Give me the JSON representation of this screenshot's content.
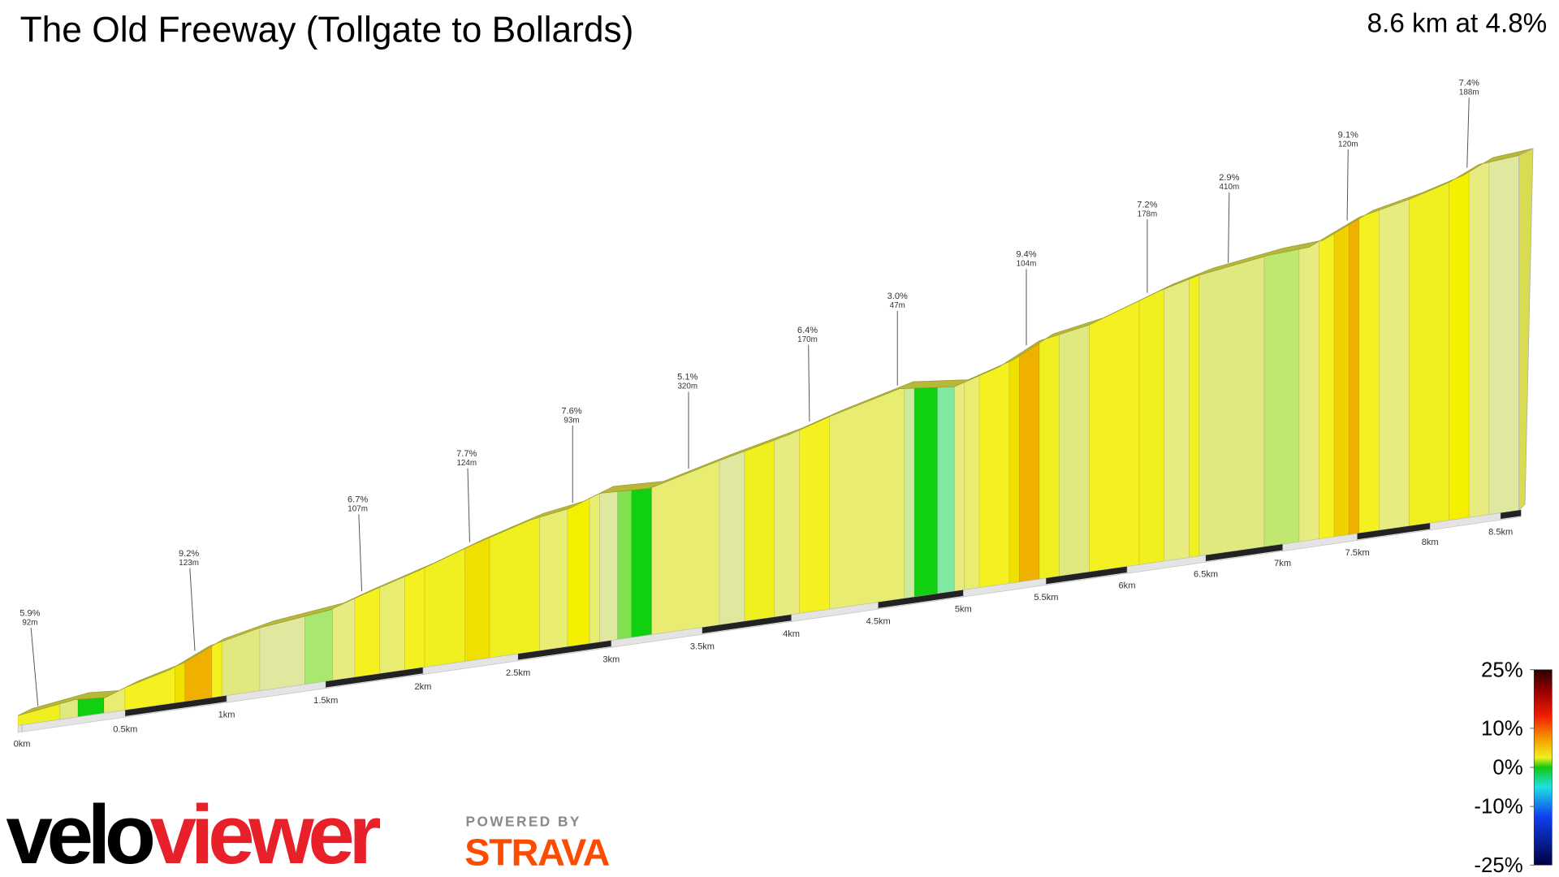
{
  "chart_data": {
    "type": "elevation-profile",
    "title": "The Old Freeway (Tollgate to Bollards)",
    "subtitle": "8.6 km at 4.8%",
    "xticks": [
      {
        "value": 0,
        "label": "0km"
      },
      {
        "value": 0.5,
        "label": "0.5km"
      },
      {
        "value": 1,
        "label": "1km"
      },
      {
        "value": 1.5,
        "label": "1.5km"
      },
      {
        "value": 2,
        "label": "2km"
      },
      {
        "value": 2.5,
        "label": "2.5km"
      },
      {
        "value": 3,
        "label": "3km"
      },
      {
        "value": 3.5,
        "label": "3.5km"
      },
      {
        "value": 4,
        "label": "4km"
      },
      {
        "value": 4.5,
        "label": "4.5km"
      },
      {
        "value": 5,
        "label": "5km"
      },
      {
        "value": 5.5,
        "label": "5.5km"
      },
      {
        "value": 6,
        "label": "6km"
      },
      {
        "value": 6.5,
        "label": "6.5km"
      },
      {
        "value": 7,
        "label": "7km"
      },
      {
        "value": 7.5,
        "label": "7.5km"
      },
      {
        "value": 8,
        "label": "8km"
      },
      {
        "value": 8.5,
        "label": "8.5km"
      }
    ],
    "annotations": [
      {
        "text": "5.9%",
        "subtext": "92m"
      },
      {
        "text": "9.2%",
        "subtext": "123m"
      },
      {
        "text": "6.7%",
        "subtext": "107m"
      },
      {
        "text": "7.7%",
        "subtext": "124m"
      },
      {
        "text": "7.6%",
        "subtext": "93m"
      },
      {
        "text": "5.1%",
        "subtext": "320m"
      },
      {
        "text": "6.4%",
        "subtext": "170m"
      },
      {
        "text": "3.0%",
        "subtext": "47m"
      },
      {
        "text": "9.4%",
        "subtext": "104m"
      },
      {
        "text": "7.2%",
        "subtext": "178m"
      },
      {
        "text": "2.9%",
        "subtext": "410m"
      },
      {
        "text": "9.1%",
        "subtext": "120m"
      },
      {
        "text": "7.4%",
        "subtext": "188m"
      }
    ],
    "legend": {
      "lim": [
        -25,
        25
      ],
      "ticks": [
        {
          "value": 25,
          "label": "25%"
        },
        {
          "value": 10,
          "label": "10%"
        },
        {
          "value": 0,
          "label": "0%"
        },
        {
          "value": -10,
          "label": "-10%"
        },
        {
          "value": -25,
          "label": "-25%"
        }
      ]
    }
  },
  "branding": {
    "logo_velo": "velo",
    "logo_viewer": "viewer",
    "powered_by": "POWERED BY",
    "strava": "STRAVA"
  }
}
